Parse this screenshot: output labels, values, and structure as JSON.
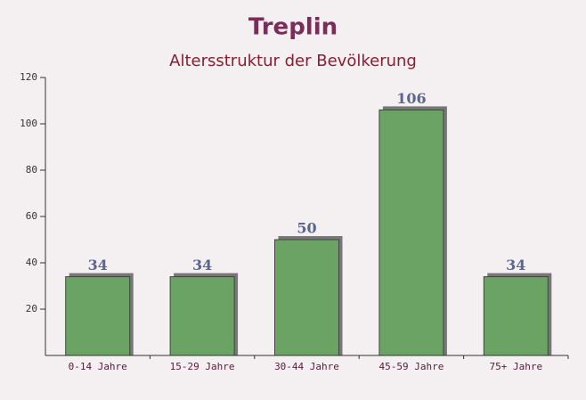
{
  "chart_data": {
    "type": "bar",
    "title": "Treplin",
    "subtitle": "Altersstruktur der Bevölkerung",
    "categories": [
      "0-14 Jahre",
      "15-29 Jahre",
      "30-44 Jahre",
      "45-59 Jahre",
      "75+ Jahre"
    ],
    "values": [
      34,
      34,
      50,
      106,
      34
    ],
    "color": "#6aa363",
    "ylim": [
      0,
      120
    ],
    "yticks": [
      20,
      40,
      60,
      80,
      100,
      120
    ]
  }
}
